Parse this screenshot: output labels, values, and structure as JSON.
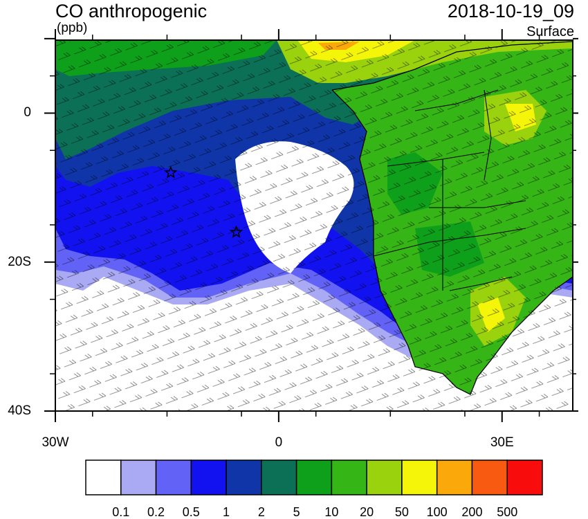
{
  "title": "CO anthropogenic",
  "units": "(ppb)",
  "datetime": "2018-10-19_09",
  "level": "Surface",
  "lat_ticks": [
    {
      "value": 10,
      "label": ""
    },
    {
      "value": 0,
      "label": "0"
    },
    {
      "value": -20,
      "label": "20S"
    },
    {
      "value": -40,
      "label": "40S"
    }
  ],
  "lon_ticks": [
    {
      "value": -30,
      "label": "30W"
    },
    {
      "value": 0,
      "label": "0"
    },
    {
      "value": 30,
      "label": "30E"
    }
  ],
  "colorbar": {
    "colors": [
      "#ffffff",
      "#a9a9f4",
      "#6262f6",
      "#1212f0",
      "#0f35a8",
      "#0b7056",
      "#0ea01a",
      "#36b516",
      "#9bd20e",
      "#f5f50a",
      "#fba90a",
      "#f95a12",
      "#f90c0c"
    ],
    "labels": [
      "0.1",
      "0.2",
      "0.5",
      "1",
      "2",
      "5",
      "10",
      "20",
      "50",
      "100",
      "200",
      "500"
    ]
  },
  "markers": [
    {
      "name": "star-site-1",
      "lon": -14.5,
      "lat": -8
    },
    {
      "name": "star-site-2",
      "lon": -5.7,
      "lat": -16
    }
  ]
}
